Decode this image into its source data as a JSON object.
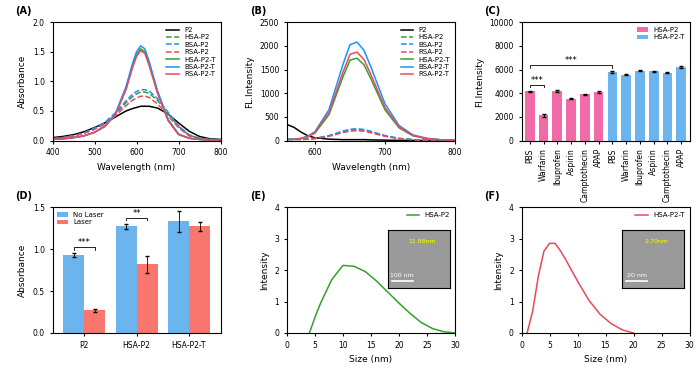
{
  "chart_data": [
    {
      "type": "line",
      "label": "(A)",
      "x_label": "Wavelength (nm)",
      "y_label": "Absorbance",
      "x": [
        400,
        425,
        450,
        475,
        500,
        525,
        550,
        575,
        590,
        600,
        610,
        620,
        630,
        650,
        675,
        700,
        725,
        750,
        775,
        800
      ],
      "xlim": [
        400,
        800
      ],
      "xticks": [
        400,
        500,
        600,
        700,
        800
      ],
      "ylim": [
        0,
        2.0
      ],
      "yticks": [
        {
          "value": 0,
          "label": "0.0"
        },
        {
          "value": 0.5,
          "label": "0.5"
        },
        {
          "value": 1.0,
          "label": "1.0"
        },
        {
          "value": 1.5,
          "label": "1.5"
        },
        {
          "value": 2.0,
          "label": "2.0"
        }
      ],
      "legend": "upper right",
      "series": [
        {
          "name": "P2",
          "color": "#000000",
          "line_style": "solid",
          "values": [
            0.05,
            0.07,
            0.1,
            0.15,
            0.22,
            0.3,
            0.4,
            0.5,
            0.54,
            0.56,
            0.58,
            0.58,
            0.58,
            0.55,
            0.45,
            0.3,
            0.16,
            0.07,
            0.03,
            0.02
          ]
        },
        {
          "name": "HSA-P2",
          "color": "#33a02c",
          "line_style": "dashed",
          "values": [
            0.03,
            0.05,
            0.08,
            0.13,
            0.2,
            0.3,
            0.45,
            0.64,
            0.74,
            0.79,
            0.82,
            0.82,
            0.8,
            0.68,
            0.46,
            0.24,
            0.09,
            0.04,
            0.02,
            0.01
          ]
        },
        {
          "name": "BSA-P2",
          "color": "#1e90ff",
          "line_style": "dashed",
          "values": [
            0.03,
            0.05,
            0.08,
            0.13,
            0.21,
            0.31,
            0.47,
            0.67,
            0.78,
            0.83,
            0.86,
            0.86,
            0.84,
            0.71,
            0.48,
            0.25,
            0.1,
            0.04,
            0.02,
            0.01
          ]
        },
        {
          "name": "RSA-P2",
          "color": "#e64b5a",
          "line_style": "dashed",
          "values": [
            0.03,
            0.05,
            0.08,
            0.12,
            0.19,
            0.28,
            0.42,
            0.59,
            0.68,
            0.72,
            0.75,
            0.75,
            0.73,
            0.62,
            0.42,
            0.22,
            0.08,
            0.03,
            0.02,
            0.01
          ]
        },
        {
          "name": "HSA-P2-T",
          "color": "#33a02c",
          "line_style": "solid",
          "values": [
            0.02,
            0.03,
            0.05,
            0.08,
            0.14,
            0.24,
            0.45,
            0.88,
            1.25,
            1.45,
            1.55,
            1.5,
            1.3,
            0.82,
            0.35,
            0.11,
            0.04,
            0.02,
            0.01,
            0.01
          ]
        },
        {
          "name": "BSA-P2-T",
          "color": "#1e90ff",
          "line_style": "solid",
          "values": [
            0.02,
            0.03,
            0.05,
            0.08,
            0.14,
            0.25,
            0.46,
            0.91,
            1.29,
            1.5,
            1.6,
            1.55,
            1.34,
            0.84,
            0.36,
            0.11,
            0.04,
            0.02,
            0.01,
            0.01
          ]
        },
        {
          "name": "RSA-P2-T",
          "color": "#e64b5a",
          "line_style": "solid",
          "values": [
            0.02,
            0.03,
            0.05,
            0.08,
            0.14,
            0.24,
            0.44,
            0.86,
            1.22,
            1.42,
            1.52,
            1.47,
            1.27,
            0.8,
            0.34,
            0.1,
            0.04,
            0.02,
            0.01,
            0.01
          ]
        }
      ]
    },
    {
      "type": "line",
      "label": "(B)",
      "x_label": "Wavelength (nm)",
      "y_label": "FL.Intensity",
      "x": [
        560,
        570,
        580,
        590,
        600,
        620,
        640,
        650,
        660,
        670,
        680,
        700,
        720,
        740,
        760,
        780,
        800
      ],
      "xlim": [
        560,
        800
      ],
      "xticks": [
        600,
        700,
        800
      ],
      "ylim": [
        0,
        2500
      ],
      "yticks": [
        0,
        500,
        1000,
        1500,
        2000,
        2500
      ],
      "legend": "upper right",
      "series": [
        {
          "name": "P2",
          "color": "#000000",
          "line_style": "solid",
          "values": [
            340,
            280,
            180,
            100,
            60,
            30,
            20,
            20,
            20,
            20,
            15,
            10,
            5,
            3,
            2,
            1,
            0
          ]
        },
        {
          "name": "HSA-P2",
          "color": "#33a02c",
          "line_style": "dashed",
          "values": [
            30,
            25,
            25,
            30,
            45,
            100,
            190,
            225,
            235,
            220,
            185,
            100,
            45,
            20,
            8,
            4,
            2
          ]
        },
        {
          "name": "BSA-P2",
          "color": "#1e90ff",
          "line_style": "dashed",
          "values": [
            30,
            25,
            25,
            32,
            48,
            105,
            200,
            240,
            250,
            235,
            195,
            105,
            48,
            22,
            9,
            4,
            2
          ]
        },
        {
          "name": "RSA-P2",
          "color": "#e64b5a",
          "line_style": "dashed",
          "values": [
            28,
            24,
            24,
            28,
            42,
            90,
            170,
            200,
            210,
            198,
            165,
            90,
            40,
            18,
            7,
            3,
            2
          ]
        },
        {
          "name": "HSA-P2-T",
          "color": "#33a02c",
          "line_style": "solid",
          "values": [
            20,
            25,
            40,
            80,
            160,
            550,
            1350,
            1700,
            1740,
            1600,
            1300,
            650,
            270,
            100,
            40,
            15,
            5
          ]
        },
        {
          "name": "BSA-P2-T",
          "color": "#1e90ff",
          "line_style": "solid",
          "values": [
            24,
            30,
            48,
            95,
            190,
            655,
            1610,
            2025,
            2080,
            1905,
            1550,
            775,
            320,
            120,
            48,
            18,
            6
          ]
        },
        {
          "name": "RSA-P2-T",
          "color": "#e64b5a",
          "line_style": "solid",
          "values": [
            21,
            27,
            43,
            86,
            171,
            590,
            1445,
            1820,
            1870,
            1710,
            1390,
            695,
            290,
            107,
            43,
            16,
            5
          ]
        }
      ]
    },
    {
      "type": "bar",
      "label": "(C)",
      "y_label": "Fl.Intensity",
      "categories": [
        "PBS",
        "Warfarin",
        "Ibuprofen",
        "Aspirin",
        "Camptothecin",
        "APAP",
        "PBS",
        "Warfarin",
        "Ibuprofen",
        "Aspirin",
        "Camptothecin",
        "APAP"
      ],
      "ylim": [
        0,
        10000
      ],
      "yticks": [
        0,
        2000,
        4000,
        6000,
        8000,
        10000
      ],
      "legend": "upper right",
      "series": [
        {
          "name": "HSA-P2",
          "color": "#f06ba8",
          "values": [
            4150,
            2150,
            4200,
            3550,
            3900,
            4100,
            null,
            null,
            null,
            null,
            null,
            null
          ],
          "errors": [
            80,
            120,
            60,
            50,
            60,
            70,
            null,
            null,
            null,
            null,
            null,
            null
          ]
        },
        {
          "name": "HSA-P2-T",
          "color": "#6cb4ee",
          "values": [
            null,
            null,
            null,
            null,
            null,
            null,
            5800,
            5550,
            5900,
            5850,
            5750,
            6200
          ],
          "errors": [
            null,
            null,
            null,
            null,
            null,
            null,
            60,
            50,
            60,
            50,
            60,
            70
          ]
        }
      ],
      "significance": [
        {
          "text": "***",
          "between": [
            0,
            1
          ]
        },
        {
          "text": "***",
          "between": [
            0,
            6
          ]
        }
      ]
    },
    {
      "type": "bar",
      "label": "(D)",
      "y_label": "Absorbance",
      "categories": [
        "P2",
        "HSA-P2",
        "HSA-P2-T"
      ],
      "ylim": [
        0,
        1.5
      ],
      "yticks": [
        {
          "value": 0,
          "label": "0.0"
        },
        {
          "value": 0.5,
          "label": "0.5"
        },
        {
          "value": 1.0,
          "label": "1.0"
        },
        {
          "value": 1.5,
          "label": "1.5"
        }
      ],
      "legend": "upper left",
      "series": [
        {
          "name": "No Laser",
          "color": "#6cb4ee",
          "values": [
            0.93,
            1.27,
            1.33
          ],
          "errors": [
            0.02,
            0.03,
            0.12
          ]
        },
        {
          "name": "Laser",
          "color": "#f8766d",
          "values": [
            0.27,
            0.82,
            1.27
          ],
          "errors": [
            0.02,
            0.1,
            0.05
          ]
        }
      ],
      "significance": [
        {
          "text": "***",
          "category": 0
        },
        {
          "text": "**",
          "category": 1
        }
      ]
    },
    {
      "type": "line",
      "label": "(E)",
      "x_label": "Size (nm)",
      "y_label": "Intensity",
      "x": [
        4,
        5,
        6,
        8,
        10,
        12,
        14,
        16,
        18,
        20,
        22,
        24,
        26,
        28,
        30
      ],
      "xlim": [
        0,
        30
      ],
      "xticks": [
        0,
        5,
        10,
        15,
        20,
        25,
        30
      ],
      "ylim": [
        0,
        4
      ],
      "yticks": [
        0,
        1,
        2,
        3,
        4
      ],
      "legend": "upper right",
      "series": [
        {
          "name": "HSA-P2",
          "color": "#33a02c",
          "line_style": "solid",
          "values": [
            0,
            0.5,
            0.95,
            1.7,
            2.15,
            2.12,
            1.95,
            1.65,
            1.3,
            0.95,
            0.62,
            0.33,
            0.14,
            0.04,
            0
          ]
        }
      ],
      "inset": {
        "size_label": "11.88nm",
        "scale_bar": "100 nm"
      }
    },
    {
      "type": "line",
      "label": "(F)",
      "x_label": "Size (nm)",
      "y_label": "Intensity",
      "x": [
        1,
        2,
        3,
        4,
        5,
        6,
        7,
        8,
        10,
        12,
        14,
        16,
        18,
        20
      ],
      "xlim": [
        0,
        30
      ],
      "xticks": [
        0,
        5,
        10,
        15,
        20,
        25,
        30
      ],
      "ylim": [
        0,
        4
      ],
      "yticks": [
        0,
        1,
        2,
        3,
        4
      ],
      "legend": "upper right",
      "series": [
        {
          "name": "HSA-P2-T",
          "color": "#e64b5a",
          "line_style": "solid",
          "values": [
            0,
            0.7,
            1.8,
            2.6,
            2.85,
            2.85,
            2.6,
            2.3,
            1.65,
            1.05,
            0.6,
            0.3,
            0.1,
            0
          ]
        }
      ],
      "inset": {
        "size_label": "2.70nm",
        "scale_bar": "20 nm"
      }
    }
  ]
}
